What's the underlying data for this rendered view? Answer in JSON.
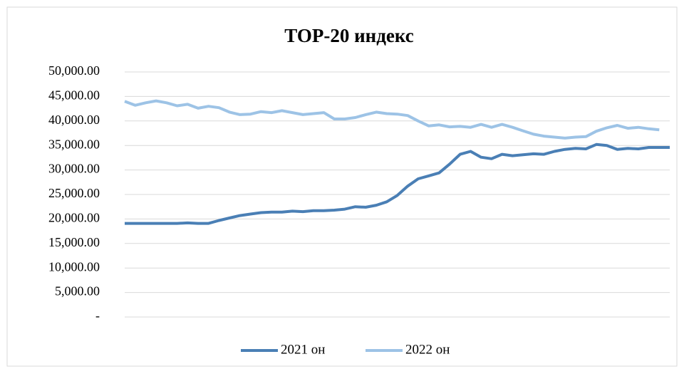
{
  "chart_data": {
    "type": "line",
    "title": "ТОР-20 индекс",
    "categories": [
      null,
      null,
      null,
      null,
      null,
      null,
      null,
      null,
      null,
      null,
      null,
      null,
      null,
      null,
      null,
      null,
      null,
      null,
      null,
      null,
      null,
      null,
      null,
      null,
      null,
      null,
      null,
      null,
      null,
      null,
      null,
      null,
      null,
      null,
      null,
      null,
      null,
      null,
      null,
      null,
      null,
      null,
      null,
      null,
      null,
      null,
      null,
      null,
      null,
      null,
      null,
      null,
      null
    ],
    "series": [
      {
        "name": "2021 он",
        "color": "#4a7fb5",
        "values": [
          19100,
          19100,
          19100,
          19100,
          19100,
          19100,
          19200,
          19100,
          19100,
          19700,
          20200,
          20700,
          21000,
          21300,
          21400,
          21400,
          21600,
          21500,
          21700,
          21700,
          21800,
          22000,
          22500,
          22400,
          22800,
          23500,
          24800,
          26700,
          28200,
          28800,
          29400,
          31200,
          33200,
          33800,
          32600,
          32300,
          33200,
          32900,
          33100,
          33300,
          33200,
          33800,
          34200,
          34400,
          34300,
          35200,
          35000,
          34200,
          34400,
          34300,
          34600,
          34600,
          34600
        ]
      },
      {
        "name": "2022 он",
        "color": "#9dc3e6",
        "values": [
          44000,
          43200,
          43700,
          44100,
          43700,
          43100,
          43400,
          42600,
          43000,
          42700,
          41800,
          41300,
          41400,
          41900,
          41700,
          42100,
          41700,
          41300,
          41500,
          41700,
          40400,
          40400,
          40700,
          41300,
          41800,
          41500,
          41400,
          41100,
          40000,
          39000,
          39200,
          38800,
          38900,
          38700,
          39300,
          38700,
          39300,
          38700,
          38000,
          37300,
          36900,
          36700,
          36500,
          36700,
          36800,
          37900,
          38600,
          39100,
          38500,
          38700,
          38400,
          38200,
          null
        ]
      }
    ],
    "ylim": [
      0,
      50000
    ],
    "yticks": [
      {
        "value": 0,
        "label": "-"
      },
      {
        "value": 5000,
        "label": "5,000.00"
      },
      {
        "value": 10000,
        "label": "10,000.00"
      },
      {
        "value": 15000,
        "label": "15,000.00"
      },
      {
        "value": 20000,
        "label": "20,000.00"
      },
      {
        "value": 25000,
        "label": "25,000.00"
      },
      {
        "value": 30000,
        "label": "30,000.00"
      },
      {
        "value": 35000,
        "label": "35,000.00"
      },
      {
        "value": 40000,
        "label": "40,000.00"
      },
      {
        "value": 45000,
        "label": "45,000.00"
      },
      {
        "value": 50000,
        "label": "50,000.00"
      }
    ],
    "grid": true,
    "legend": "bottom"
  }
}
